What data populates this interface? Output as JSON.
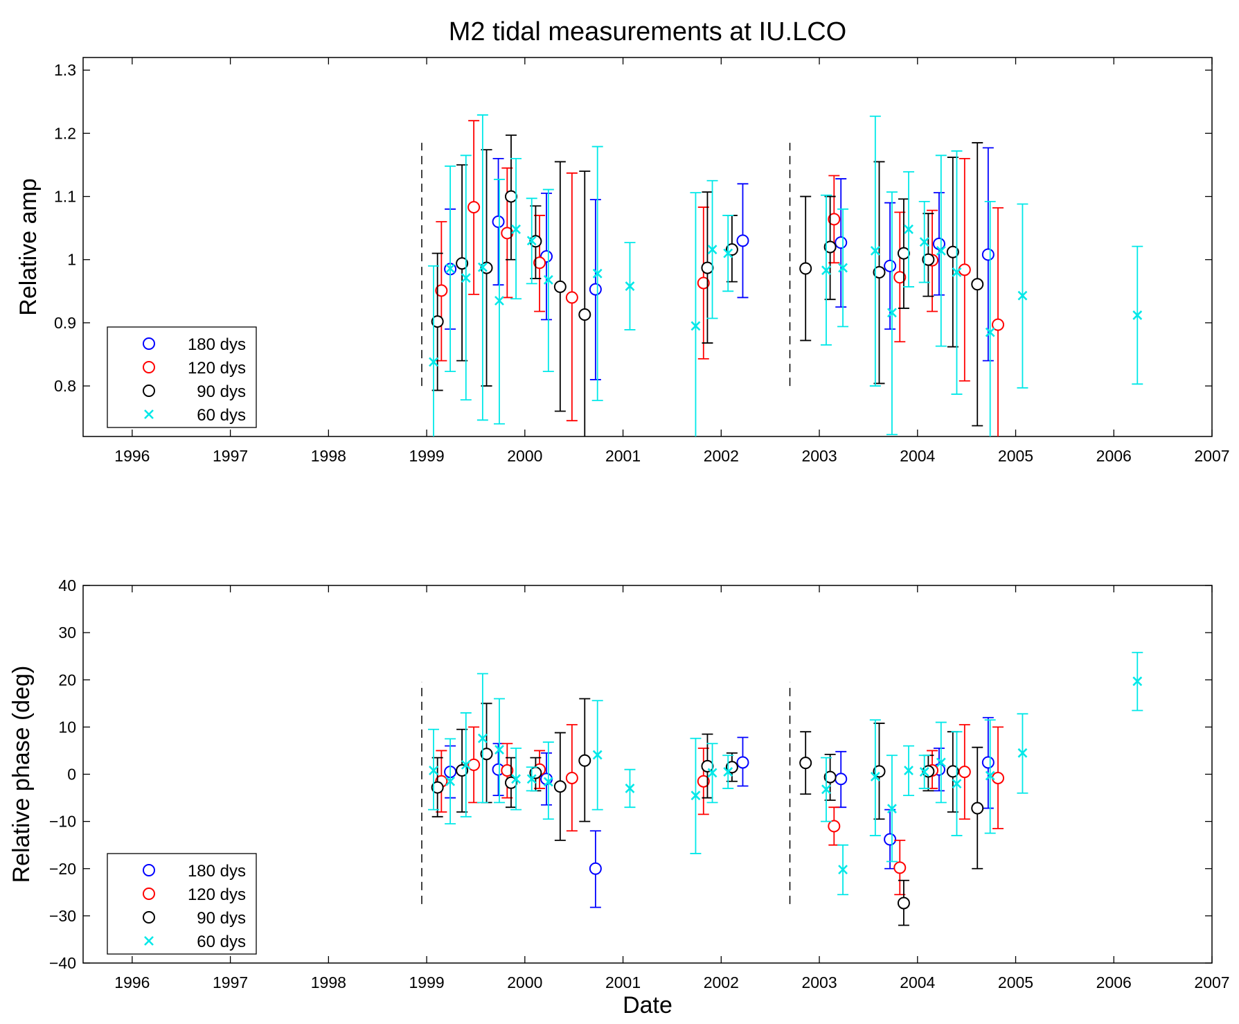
{
  "chart_data": [
    {
      "type": "scatter",
      "title": "M2 tidal measurements at IU.LCO",
      "xlabel": "",
      "ylabel": "Relative amp",
      "xlim": [
        1995.5,
        2007.0
      ],
      "ylim": [
        0.72,
        1.32
      ],
      "xticks": [
        1996,
        1997,
        1998,
        1999,
        2000,
        2001,
        2002,
        2003,
        2004,
        2005,
        2006,
        2007
      ],
      "yticks": [
        0.8,
        0.9,
        1,
        1.1,
        1.2,
        1.3
      ],
      "ytick_labels": [
        "0.8",
        "0.9",
        "1",
        "1.1",
        "1.2",
        "1.3"
      ],
      "grid": false,
      "legend_position": "bottom-left",
      "vlines": [
        {
          "x": 1998.95,
          "y0": 0.8,
          "y1": 1.185
        },
        {
          "x": 2002.7,
          "y0": 0.8,
          "y1": 1.185
        }
      ],
      "series": [
        {
          "name": "180 dys",
          "color": "#0000ff",
          "marker": "circle",
          "points": [
            [
              1999.24,
              0.985,
              0.89,
              1.08
            ],
            [
              1999.73,
              1.06,
              0.96,
              1.16
            ],
            [
              2000.22,
              1.005,
              0.905,
              1.105
            ],
            [
              2000.72,
              0.953,
              0.81,
              1.095
            ],
            [
              2002.22,
              1.03,
              0.94,
              1.12
            ],
            [
              2003.22,
              1.027,
              0.925,
              1.128
            ],
            [
              2003.72,
              0.99,
              0.89,
              1.09
            ],
            [
              2004.22,
              1.025,
              0.944,
              1.106
            ],
            [
              2004.72,
              1.008,
              0.84,
              1.177
            ]
          ]
        },
        {
          "name": "120 dys",
          "color": "#ff0000",
          "marker": "circle",
          "points": [
            [
              1999.15,
              0.951,
              0.84,
              1.06
            ],
            [
              1999.48,
              1.083,
              0.945,
              1.22
            ],
            [
              1999.82,
              1.042,
              0.94,
              1.145
            ],
            [
              2000.15,
              0.995,
              0.918,
              1.07
            ],
            [
              2000.48,
              0.94,
              0.745,
              1.137
            ],
            [
              2001.82,
              0.963,
              0.843,
              1.083
            ],
            [
              2003.15,
              1.064,
              0.995,
              1.133
            ],
            [
              2003.82,
              0.972,
              0.87,
              1.075
            ],
            [
              2004.15,
              0.999,
              0.918,
              1.078
            ],
            [
              2004.48,
              0.984,
              0.808,
              1.16
            ],
            [
              2004.82,
              0.897,
              0.71,
              1.082
            ]
          ]
        },
        {
          "name": "90 dys",
          "color": "#000000",
          "marker": "circle",
          "points": [
            [
              1999.11,
              0.902,
              0.793,
              1.01
            ],
            [
              1999.36,
              0.994,
              0.84,
              1.15
            ],
            [
              1999.61,
              0.987,
              0.8,
              1.174
            ],
            [
              1999.86,
              1.1,
              1.0,
              1.197
            ],
            [
              2000.11,
              1.029,
              0.97,
              1.085
            ],
            [
              2000.36,
              0.957,
              0.76,
              1.155
            ],
            [
              2000.61,
              0.913,
              0.7,
              1.14
            ],
            [
              2001.86,
              0.987,
              0.868,
              1.107
            ],
            [
              2002.11,
              1.016,
              0.965,
              1.07
            ],
            [
              2002.86,
              0.986,
              0.872,
              1.1
            ],
            [
              2003.11,
              1.02,
              0.937,
              1.1
            ],
            [
              2003.61,
              0.98,
              0.804,
              1.155
            ],
            [
              2003.86,
              1.01,
              0.923,
              1.096
            ],
            [
              2004.11,
              1.0,
              0.942,
              1.073
            ],
            [
              2004.36,
              1.012,
              0.862,
              1.162
            ],
            [
              2004.61,
              0.961,
              0.737,
              1.185
            ]
          ]
        },
        {
          "name": "60 dys",
          "color": "#00e8e8",
          "marker": "x",
          "points": [
            [
              1999.07,
              0.838,
              0.7,
              0.99
            ],
            [
              1999.24,
              0.986,
              0.823,
              1.148
            ],
            [
              1999.4,
              0.971,
              0.778,
              1.165
            ],
            [
              1999.57,
              0.988,
              0.746,
              1.229
            ],
            [
              1999.74,
              0.935,
              0.74,
              1.127
            ],
            [
              1999.91,
              1.048,
              0.938,
              1.16
            ],
            [
              2000.07,
              1.03,
              0.962,
              1.097
            ],
            [
              2000.24,
              0.968,
              0.823,
              1.111
            ],
            [
              2000.74,
              0.978,
              0.777,
              1.179
            ],
            [
              2001.07,
              0.958,
              0.889,
              1.027
            ],
            [
              2001.74,
              0.895,
              0.7,
              1.106
            ],
            [
              2001.91,
              1.016,
              0.907,
              1.125
            ],
            [
              2002.07,
              1.01,
              0.95,
              1.07
            ],
            [
              2003.07,
              0.983,
              0.865,
              1.102
            ],
            [
              2003.24,
              0.987,
              0.894,
              1.08
            ],
            [
              2003.57,
              1.014,
              0.8,
              1.227
            ],
            [
              2003.74,
              0.916,
              0.723,
              1.107
            ],
            [
              2003.91,
              1.048,
              0.957,
              1.139
            ],
            [
              2004.07,
              1.028,
              0.964,
              1.092
            ],
            [
              2004.24,
              1.014,
              0.863,
              1.165
            ],
            [
              2004.4,
              0.98,
              0.787,
              1.172
            ],
            [
              2004.74,
              0.885,
              0.7,
              1.092
            ],
            [
              2005.07,
              0.943,
              0.797,
              1.088
            ],
            [
              2006.24,
              0.912,
              0.803,
              1.021
            ]
          ]
        }
      ]
    },
    {
      "type": "scatter",
      "title": "",
      "xlabel": "Date",
      "ylabel": "Relative phase (deg)",
      "xlim": [
        1995.5,
        2007.0
      ],
      "ylim": [
        -40,
        40
      ],
      "xticks": [
        1996,
        1997,
        1998,
        1999,
        2000,
        2001,
        2002,
        2003,
        2004,
        2005,
        2006,
        2007
      ],
      "yticks": [
        -40,
        -30,
        -20,
        -10,
        0,
        10,
        20,
        30,
        40
      ],
      "ytick_labels": [
        "−40",
        "−30",
        "−20",
        "−10",
        "0",
        "10",
        "20",
        "30",
        "40"
      ],
      "grid": false,
      "legend_position": "bottom-left",
      "vlines": [
        {
          "x": 1998.95,
          "y0": -27.5,
          "y1": 19.5
        },
        {
          "x": 2002.7,
          "y0": -27.5,
          "y1": 19.5
        }
      ],
      "series": [
        {
          "name": "180 dys",
          "color": "#0000ff",
          "marker": "circle",
          "points": [
            [
              1999.24,
              0.5,
              -5.0,
              6.0
            ],
            [
              1999.73,
              1.0,
              -4.5,
              6.5
            ],
            [
              2000.22,
              -1.0,
              -6.5,
              4.5
            ],
            [
              2000.72,
              -20.0,
              -28.2,
              -12.0
            ],
            [
              2002.22,
              2.5,
              -2.5,
              7.8
            ],
            [
              2003.22,
              -1.0,
              -7.0,
              4.8
            ],
            [
              2003.72,
              -13.8,
              -20.0,
              -7.5
            ],
            [
              2004.22,
              1.0,
              -3.5,
              5.5
            ],
            [
              2004.72,
              2.5,
              -7.2,
              12.0
            ]
          ]
        },
        {
          "name": "120 dys",
          "color": "#ff0000",
          "marker": "circle",
          "points": [
            [
              1999.15,
              -1.5,
              -8.0,
              5.0
            ],
            [
              1999.48,
              2.0,
              -6.0,
              10.0
            ],
            [
              1999.82,
              0.8,
              -5.0,
              6.5
            ],
            [
              2000.15,
              1.0,
              -3.0,
              5.0
            ],
            [
              2000.48,
              -0.8,
              -12.0,
              10.5
            ],
            [
              2001.82,
              -1.5,
              -8.5,
              5.5
            ],
            [
              2003.15,
              -11.0,
              -15.0,
              -7.0
            ],
            [
              2003.82,
              -19.8,
              -25.5,
              -14.0
            ],
            [
              2004.15,
              0.8,
              -3.0,
              5.0
            ],
            [
              2004.48,
              0.5,
              -9.5,
              10.5
            ],
            [
              2004.82,
              -0.8,
              -11.5,
              10.0
            ]
          ]
        },
        {
          "name": "90 dys",
          "color": "#000000",
          "marker": "circle",
          "points": [
            [
              1999.11,
              -2.8,
              -9.0,
              3.5
            ],
            [
              1999.36,
              0.8,
              -8.0,
              9.5
            ],
            [
              1999.61,
              4.3,
              -6.0,
              15.0
            ],
            [
              1999.86,
              -1.8,
              -7.0,
              3.5
            ],
            [
              2000.11,
              0.3,
              -3.5,
              3.5
            ],
            [
              2000.36,
              -2.6,
              -14.0,
              8.8
            ],
            [
              2000.61,
              2.9,
              -10.0,
              16.0
            ],
            [
              2001.86,
              1.7,
              -5.0,
              8.5
            ],
            [
              2002.11,
              1.5,
              -1.5,
              4.5
            ],
            [
              2002.86,
              2.4,
              -4.2,
              9.0
            ],
            [
              2003.11,
              -0.6,
              -5.5,
              4.2
            ],
            [
              2003.61,
              0.6,
              -9.5,
              10.8
            ],
            [
              2003.86,
              -27.3,
              -32.0,
              -22.5
            ],
            [
              2004.11,
              0.6,
              -3.5,
              4.0
            ],
            [
              2004.36,
              0.6,
              -8.0,
              9.0
            ],
            [
              2004.61,
              -7.2,
              -20.0,
              5.7
            ]
          ]
        },
        {
          "name": "60 dys",
          "color": "#00e8e8",
          "marker": "x",
          "points": [
            [
              1999.07,
              0.8,
              -7.5,
              9.5
            ],
            [
              1999.24,
              -1.5,
              -10.5,
              7.5
            ],
            [
              1999.4,
              2.0,
              -9.0,
              13.0
            ],
            [
              1999.57,
              7.6,
              -6.0,
              21.3
            ],
            [
              1999.74,
              5.2,
              -6.0,
              16.0
            ],
            [
              1999.91,
              -1.0,
              -7.5,
              5.5
            ],
            [
              2000.07,
              -1.0,
              -3.5,
              1.5
            ],
            [
              2000.24,
              -1.6,
              -9.5,
              6.8
            ],
            [
              2000.74,
              4.1,
              -7.5,
              15.6
            ],
            [
              2001.07,
              -3.0,
              -7.0,
              1.0
            ],
            [
              2001.74,
              -4.5,
              -16.8,
              7.6
            ],
            [
              2001.91,
              0.3,
              -6.0,
              6.5
            ],
            [
              2002.07,
              0.5,
              -3.0,
              4.0
            ],
            [
              2003.07,
              -3.2,
              -10.0,
              3.5
            ],
            [
              2003.24,
              -20.2,
              -25.5,
              -15.0
            ],
            [
              2003.57,
              -0.5,
              -13.0,
              11.5
            ],
            [
              2003.74,
              -7.3,
              -18.5,
              4.0
            ],
            [
              2003.91,
              0.8,
              -4.5,
              6.0
            ],
            [
              2004.07,
              0.5,
              -3.0,
              4.0
            ],
            [
              2004.24,
              2.5,
              -6.0,
              11.0
            ],
            [
              2004.4,
              -2.0,
              -13.0,
              9.0
            ],
            [
              2004.74,
              -0.3,
              -12.5,
              11.5
            ],
            [
              2005.07,
              4.5,
              -4.0,
              12.8
            ],
            [
              2006.24,
              19.7,
              13.5,
              25.8
            ]
          ]
        }
      ]
    }
  ]
}
